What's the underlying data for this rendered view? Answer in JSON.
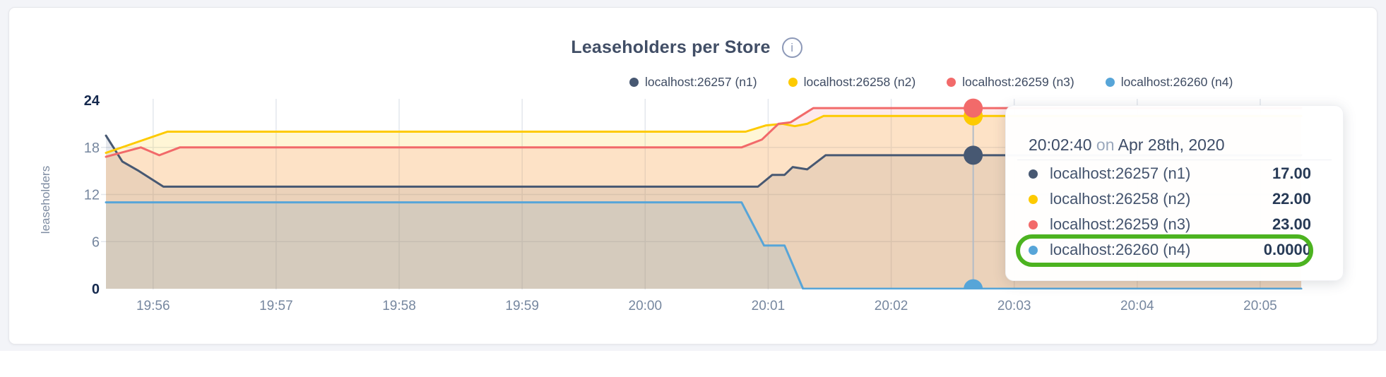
{
  "title": {
    "text": "Leaseholders per Store",
    "info_glyph": "i"
  },
  "legend": [
    {
      "label": "localhost:26257 (n1)",
      "color": "#475872"
    },
    {
      "label": "localhost:26258 (n2)",
      "color": "#fdca00"
    },
    {
      "label": "localhost:26259 (n3)",
      "color": "#f26a6a"
    },
    {
      "label": "localhost:26260 (n4)",
      "color": "#57a5d8"
    }
  ],
  "tooltip": {
    "time": "20:02:40",
    "separator": "on",
    "date": "Apr 28th, 2020",
    "highlight_color": "#4cb320",
    "rows": [
      {
        "name": "localhost:26257 (n1)",
        "value": "17.00",
        "color": "#475872",
        "highlighted": false
      },
      {
        "name": "localhost:26258 (n2)",
        "value": "22.00",
        "color": "#fdca00",
        "highlighted": false
      },
      {
        "name": "localhost:26259 (n3)",
        "value": "23.00",
        "color": "#f26a6a",
        "highlighted": false
      },
      {
        "name": "localhost:26260 (n4)",
        "value": "0.0000",
        "color": "#57a5d8",
        "highlighted": true
      }
    ]
  },
  "chart_data": {
    "type": "area",
    "title": "Leaseholders per Store",
    "xlabel": "",
    "ylabel": "leaseholders",
    "ylim": [
      0,
      24
    ],
    "grid": true,
    "legend_position": "top-right",
    "y_gridlines": [
      6,
      12,
      18
    ],
    "y_ticks": [
      {
        "label": "24",
        "v": 24,
        "bold": true
      },
      {
        "label": "18",
        "v": 18,
        "bold": false
      },
      {
        "label": "12",
        "v": 12,
        "bold": false
      },
      {
        "label": "6",
        "v": 6,
        "bold": false
      },
      {
        "label": "0",
        "v": 0,
        "bold": true
      }
    ],
    "x_domain_seconds_from_19_55_37": [
      0,
      583
    ],
    "x_ticks": [
      {
        "label": "19:56",
        "t": 23
      },
      {
        "label": "19:57",
        "t": 83
      },
      {
        "label": "19:58",
        "t": 143
      },
      {
        "label": "19:59",
        "t": 203
      },
      {
        "label": "20:00",
        "t": 263
      },
      {
        "label": "20:01",
        "t": 323
      },
      {
        "label": "20:02",
        "t": 383
      },
      {
        "label": "20:03",
        "t": 443
      },
      {
        "label": "20:04",
        "t": 503
      },
      {
        "label": "20:05",
        "t": 563
      }
    ],
    "series": [
      {
        "name": "localhost:26257 (n1)",
        "color": "#475872",
        "fill_opacity": 0.13,
        "points": [
          [
            0,
            19.5
          ],
          [
            8,
            16.2
          ],
          [
            16,
            15
          ],
          [
            28,
            13
          ],
          [
            318,
            13
          ],
          [
            325,
            14.5
          ],
          [
            331,
            14.5
          ],
          [
            335,
            15.5
          ],
          [
            342,
            15.2
          ],
          [
            351,
            17
          ],
          [
            583,
            17
          ]
        ]
      },
      {
        "name": "localhost:26258 (n2)",
        "color": "#fdca00",
        "fill_opacity": 0.16,
        "points": [
          [
            0,
            17.3
          ],
          [
            30,
            20
          ],
          [
            312,
            20
          ],
          [
            322,
            20.8
          ],
          [
            330,
            21
          ],
          [
            336,
            20.7
          ],
          [
            342,
            21
          ],
          [
            350,
            22
          ],
          [
            583,
            22
          ]
        ]
      },
      {
        "name": "localhost:26259 (n3)",
        "color": "#f26a6a",
        "fill_opacity": 0.14,
        "points": [
          [
            0,
            16.8
          ],
          [
            17,
            18
          ],
          [
            26,
            17
          ],
          [
            36,
            18
          ],
          [
            310,
            18
          ],
          [
            320,
            19
          ],
          [
            328,
            21
          ],
          [
            334,
            21.2
          ],
          [
            345,
            23
          ],
          [
            583,
            23
          ]
        ]
      },
      {
        "name": "localhost:26260 (n4)",
        "color": "#57a5d8",
        "fill_opacity": 0.14,
        "points": [
          [
            0,
            11
          ],
          [
            310,
            11
          ],
          [
            321,
            5.5
          ],
          [
            331,
            5.5
          ],
          [
            340,
            0
          ],
          [
            583,
            0
          ]
        ]
      }
    ],
    "crosshair": {
      "t": 423,
      "time_label": "20:02:40",
      "points": [
        {
          "series": "localhost:26257 (n1)",
          "v": 17,
          "color": "#475872"
        },
        {
          "series": "localhost:26258 (n2)",
          "v": 22,
          "color": "#fdca00"
        },
        {
          "series": "localhost:26259 (n3)",
          "v": 23,
          "color": "#f26a6a"
        },
        {
          "series": "localhost:26260 (n4)",
          "v": 0,
          "color": "#57a5d8"
        }
      ]
    },
    "colors": {
      "grid": "#e3e7ed",
      "crosshair": "#b3bcc7",
      "tick_light": "#76879f",
      "tick_bold": "#15294e"
    }
  }
}
